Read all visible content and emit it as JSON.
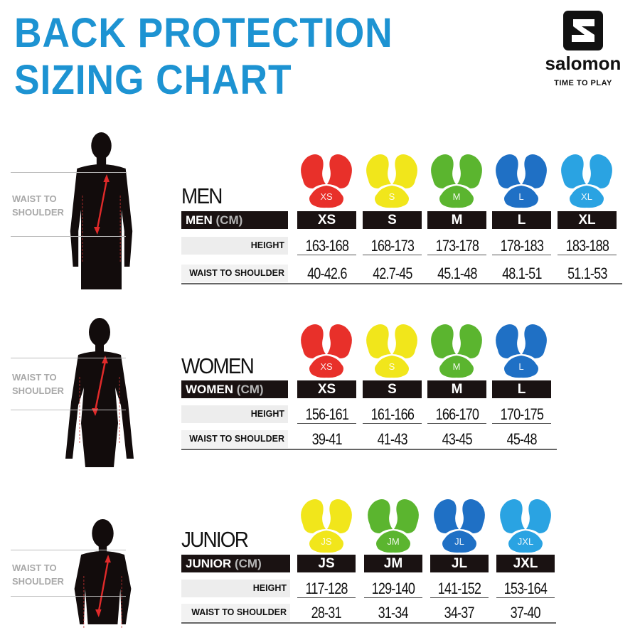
{
  "title": {
    "line1": "BACK PROTECTION",
    "line2": "SIZING CHART",
    "color": "#1d93d2"
  },
  "logo": {
    "brand": "salomon",
    "tagline": "TIME TO PLAY"
  },
  "size_colors": {
    "XS": "#e8302a",
    "S": "#f1e61b",
    "M": "#5bb52f",
    "L": "#1f70c5",
    "XL": "#2aa3e2"
  },
  "sections": [
    {
      "id": "men",
      "heading": "MEN",
      "side_label": [
        "WAIST TO",
        "SHOULDER"
      ],
      "table_label": "MEN",
      "unit": "(CM)",
      "sizes": [
        {
          "label": "XS",
          "icon_label": "XS",
          "color": "#e8302a",
          "height": "163-168",
          "waist_to_shoulder": "40-42.6"
        },
        {
          "label": "S",
          "icon_label": "S",
          "color": "#f1e61b",
          "height": "168-173",
          "waist_to_shoulder": "42.7-45"
        },
        {
          "label": "M",
          "icon_label": "M",
          "color": "#5bb52f",
          "height": "173-178",
          "waist_to_shoulder": "45.1-48"
        },
        {
          "label": "L",
          "icon_label": "L",
          "color": "#1f70c5",
          "height": "178-183",
          "waist_to_shoulder": "48.1-51"
        },
        {
          "label": "XL",
          "icon_label": "XL",
          "color": "#2aa3e2",
          "height": "183-188",
          "waist_to_shoulder": "51.1-53"
        }
      ],
      "row_labels": {
        "height": "HEIGHT",
        "waist": "WAIST TO SHOULDER"
      }
    },
    {
      "id": "women",
      "heading": "WOMEN",
      "side_label": [
        "WAIST TO",
        "SHOULDER"
      ],
      "table_label": "WOMEN",
      "unit": "(CM)",
      "sizes": [
        {
          "label": "XS",
          "icon_label": "XS",
          "color": "#e8302a",
          "height": "156-161",
          "waist_to_shoulder": "39-41"
        },
        {
          "label": "S",
          "icon_label": "S",
          "color": "#f1e61b",
          "height": "161-166",
          "waist_to_shoulder": "41-43"
        },
        {
          "label": "M",
          "icon_label": "M",
          "color": "#5bb52f",
          "height": "166-170",
          "waist_to_shoulder": "43-45"
        },
        {
          "label": "L",
          "icon_label": "L",
          "color": "#1f70c5",
          "height": "170-175",
          "waist_to_shoulder": "45-48"
        }
      ],
      "row_labels": {
        "height": "HEIGHT",
        "waist": "WAIST TO SHOULDER"
      }
    },
    {
      "id": "junior",
      "heading": "JUNIOR",
      "side_label": [
        "WAIST TO",
        "SHOULDER"
      ],
      "table_label": "JUNIOR",
      "unit": "(CM)",
      "sizes": [
        {
          "label": "JS",
          "icon_label": "JS",
          "color": "#f1e61b",
          "height": "117-128",
          "waist_to_shoulder": "28-31"
        },
        {
          "label": "JM",
          "icon_label": "JM",
          "color": "#5bb52f",
          "height": "129-140",
          "waist_to_shoulder": "31-34"
        },
        {
          "label": "JL",
          "icon_label": "JL",
          "color": "#1f70c5",
          "height": "141-152",
          "waist_to_shoulder": "34-37"
        },
        {
          "label": "JXL",
          "icon_label": "JXL",
          "color": "#2aa3e2",
          "height": "153-164",
          "waist_to_shoulder": "37-40"
        }
      ],
      "row_labels": {
        "height": "HEIGHT",
        "waist": "WAIST TO SHOULDER"
      }
    }
  ]
}
